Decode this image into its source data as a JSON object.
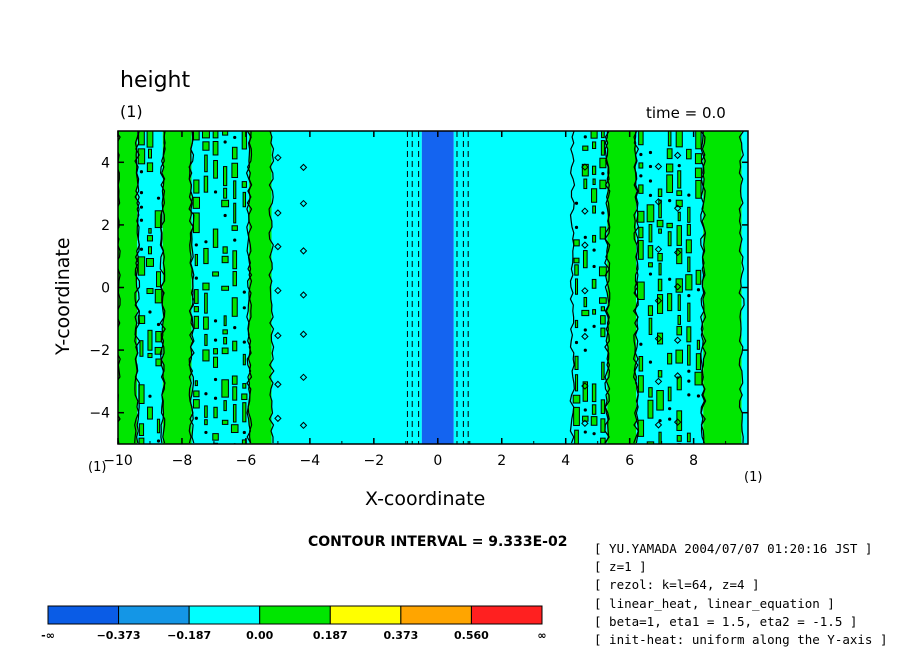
{
  "header": {
    "title": "height",
    "unit_label": "(1)",
    "time_label": "time = 0.0"
  },
  "axes": {
    "xlabel": "X-coordinate",
    "ylabel": "Y-coordinate",
    "x_unit_left": "(1)",
    "x_unit_right": "(1)"
  },
  "contour_interval": "CONTOUR INTERVAL = 9.333E-02",
  "meta_lines": [
    "[ YU.YAMADA 2004/07/07 01:20:16 JST ]",
    "[ z=1 ]",
    "[ rezol: k=l=64, z=4 ]",
    "[ linear_heat, linear_equation ]",
    "[ beta=1, eta1 = 1.5, eta2 = -1.5 ]",
    "[ init-heat: uniform along the Y-axis ]"
  ],
  "chart_data": {
    "type": "heatmap",
    "title": "height",
    "xlabel": "X-coordinate",
    "ylabel": "Y-coordinate",
    "xlim": [
      -10,
      9.7
    ],
    "ylim": [
      -5,
      5
    ],
    "x_ticks": [
      -10,
      -8,
      -6,
      -4,
      -2,
      0,
      2,
      4,
      6,
      8
    ],
    "x_tick_labels": [
      "−10",
      "−8",
      "−6",
      "−4",
      "−2",
      "0",
      "2",
      "4",
      "6",
      "8"
    ],
    "y_ticks": [
      -4,
      -2,
      0,
      2,
      4
    ],
    "y_tick_labels": [
      "−4",
      "−2",
      "0",
      "2",
      "4"
    ],
    "bands": [
      {
        "x0": -10.0,
        "x1": -9.4,
        "level": "green"
      },
      {
        "x0": -9.4,
        "x1": -8.6,
        "level": "mixed"
      },
      {
        "x0": -8.6,
        "x1": -7.7,
        "level": "green"
      },
      {
        "x0": -7.7,
        "x1": -5.9,
        "level": "mixed"
      },
      {
        "x0": -5.9,
        "x1": -5.2,
        "level": "green"
      },
      {
        "x0": -5.2,
        "x1": -0.5,
        "level": "cyan"
      },
      {
        "x0": -0.5,
        "x1": 0.5,
        "level": "blue"
      },
      {
        "x0": 0.5,
        "x1": 4.2,
        "level": "cyan"
      },
      {
        "x0": 4.2,
        "x1": 5.3,
        "level": "mixed"
      },
      {
        "x0": 5.3,
        "x1": 6.2,
        "level": "green"
      },
      {
        "x0": 6.2,
        "x1": 8.3,
        "level": "mixed"
      },
      {
        "x0": 8.3,
        "x1": 9.5,
        "level": "green"
      },
      {
        "x0": 9.5,
        "x1": 9.7,
        "level": "cyan"
      }
    ],
    "colorbar": {
      "colors": [
        "#0a5ce6",
        "#1496e6",
        "#00ffff",
        "#00e600",
        "#ffff00",
        "#ffa500",
        "#ff2020"
      ],
      "labels": [
        "-∞",
        "−0.373",
        "−0.187",
        "0.00",
        "0.187",
        "0.373",
        "0.560",
        "∞"
      ]
    },
    "level_colors": {
      "blue": "#1464f0",
      "cyan": "#00ffff",
      "green": "#00e600"
    }
  }
}
